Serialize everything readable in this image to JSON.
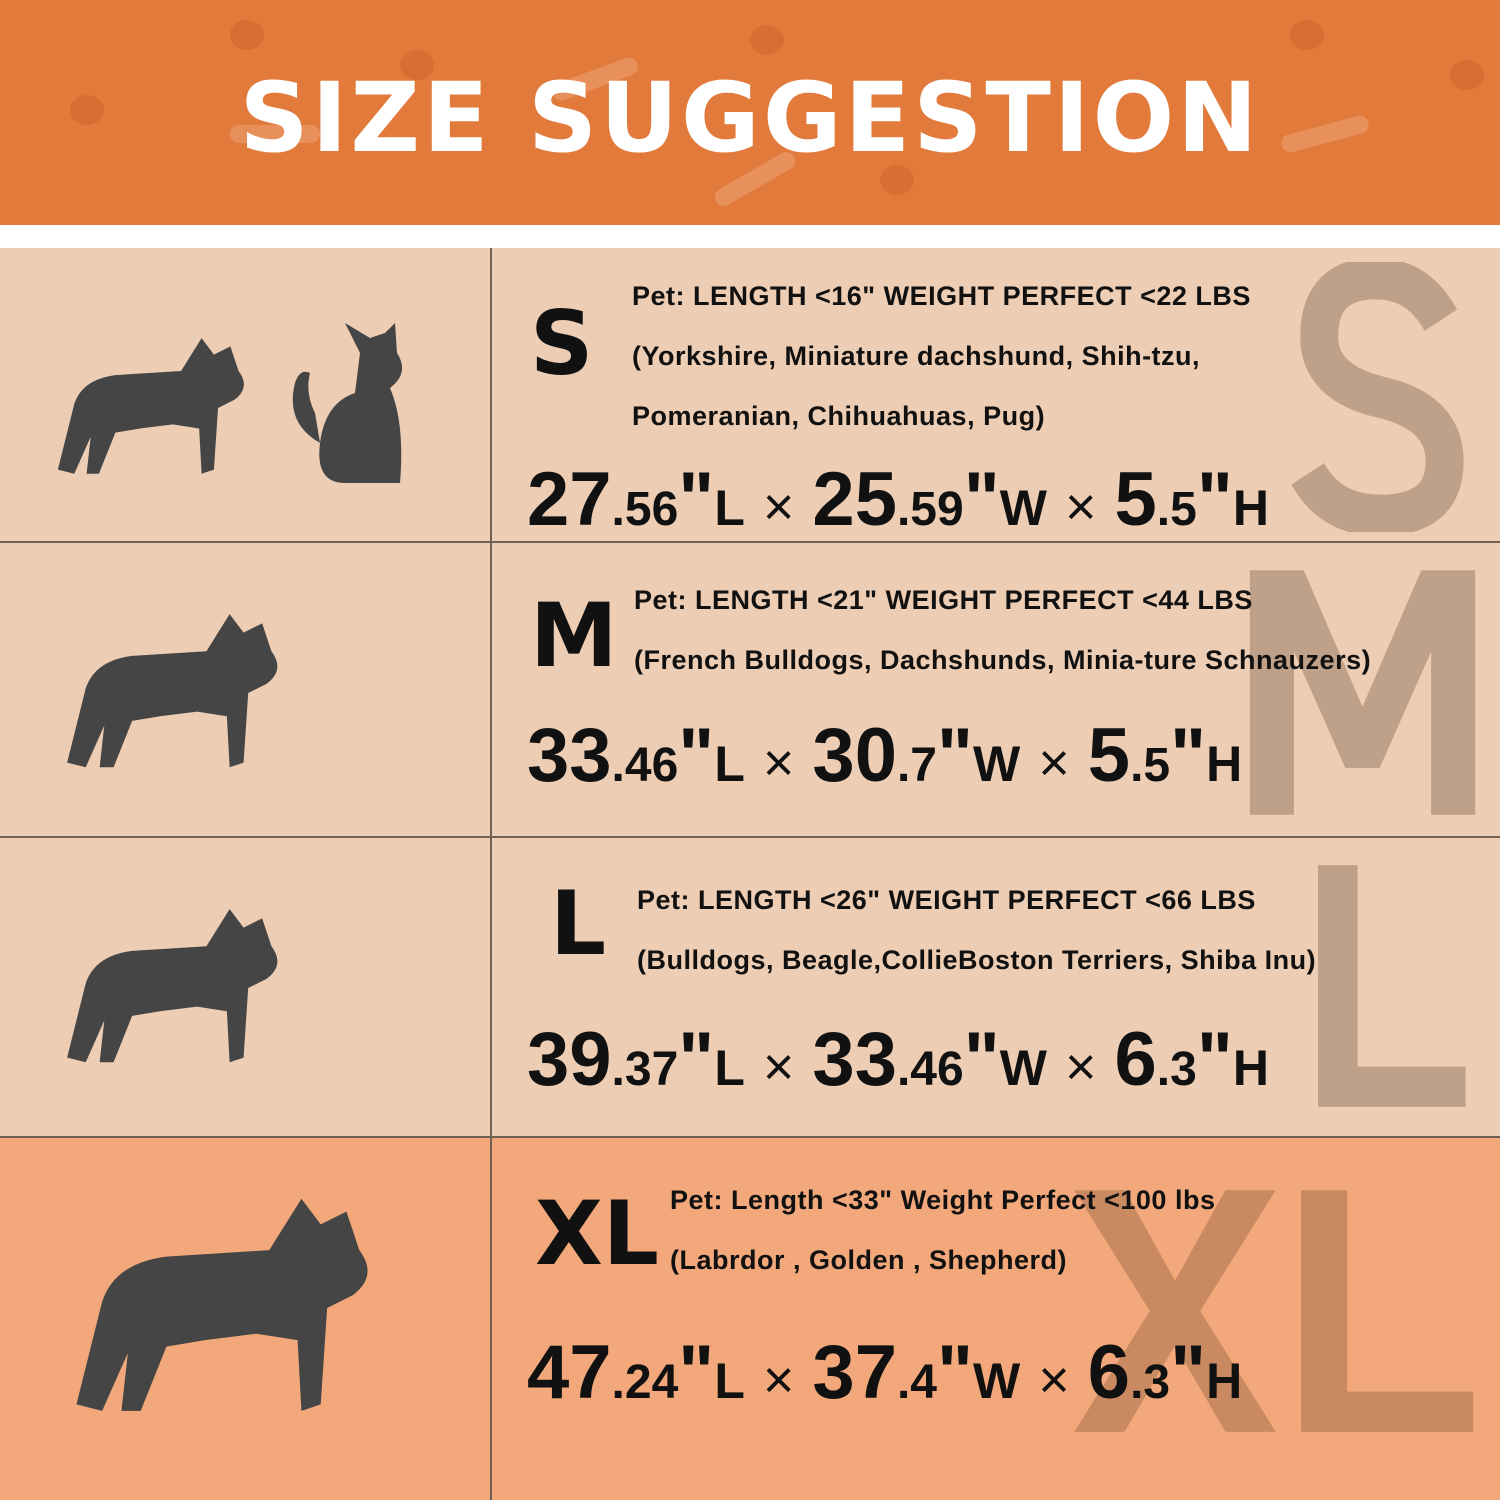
{
  "header": {
    "title": "SIZE SUGGESTION",
    "bg_color": "#E27A3C"
  },
  "rows": [
    {
      "size": "S",
      "watermark": "S",
      "pets": [
        "dog-icon",
        "cat-icon"
      ],
      "pet_line": "Pet:  LENGTH <16\"  WEIGHT PERFECT <22 LBS",
      "breeds": [
        "(Yorkshire, Miniature dachshund, Shih-tzu,",
        "Pomeranian, Chihuahuas, Pug)"
      ],
      "dims": [
        {
          "int": "27",
          "dec": ".56",
          "unit": "L"
        },
        {
          "int": "25",
          "dec": ".59",
          "unit": "W"
        },
        {
          "int": "5",
          "dec": ".5",
          "unit": "H"
        }
      ],
      "bg_color": "#EDCDB3"
    },
    {
      "size": "M",
      "watermark": "M",
      "pets": [
        "dog-icon"
      ],
      "pet_line": "Pet:  LENGTH <21\"  WEIGHT PERFECT <44 LBS",
      "breeds": [
        "(French Bulldogs, Dachshunds, Minia-ture Schnauzers)"
      ],
      "dims": [
        {
          "int": "33",
          "dec": ".46",
          "unit": "L"
        },
        {
          "int": "30",
          "dec": ".7",
          "unit": "W"
        },
        {
          "int": "5",
          "dec": ".5",
          "unit": "H"
        }
      ],
      "bg_color": "#EDCDB3"
    },
    {
      "size": "L",
      "watermark": "L",
      "pets": [
        "dog-icon"
      ],
      "pet_line": "Pet:  LENGTH <26\" WEIGHT PERFECT <66 LBS",
      "breeds": [
        "(Bulldogs, Beagle,CollieBoston Terriers, Shiba Inu)"
      ],
      "dims": [
        {
          "int": "39",
          "dec": ".37",
          "unit": "L"
        },
        {
          "int": "33",
          "dec": ".46",
          "unit": "W"
        },
        {
          "int": "6",
          "dec": ".3",
          "unit": "H"
        }
      ],
      "bg_color": "#EDCDB3"
    },
    {
      "size": "XL",
      "watermark": "XL",
      "pets": [
        "dog-icon"
      ],
      "pet_line": "Pet:  Length <33\"  Weight Perfect <100 lbs",
      "breeds": [
        "(Labrdor , Golden ,  Shepherd)"
      ],
      "dims": [
        {
          "int": "47",
          "dec": ".24",
          "unit": "L"
        },
        {
          "int": "37",
          "dec": ".4",
          "unit": "W"
        },
        {
          "int": "6",
          "dec": ".3",
          "unit": "H"
        }
      ],
      "bg_color": "#F2A87A"
    }
  ],
  "symbols": {
    "times": "×",
    "inch": "\""
  }
}
